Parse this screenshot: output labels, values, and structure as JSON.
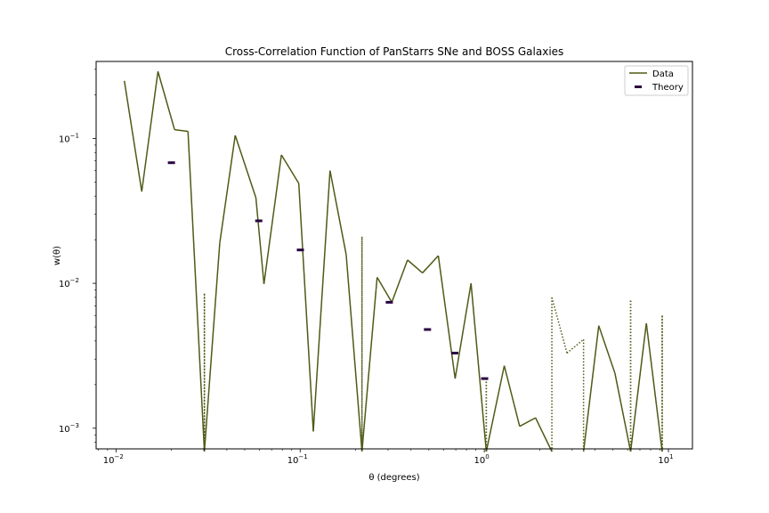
{
  "chart_data": {
    "type": "line",
    "title": "Cross-Correlation Function of PanStarrs SNe and BOSS Galaxies",
    "xlabel": "θ (degrees)",
    "ylabel": "w(θ)",
    "x_scale": "log",
    "y_scale": "log",
    "xlim": [
      0.0078,
      13.5
    ],
    "ylim": [
      0.00072,
      0.34
    ],
    "x_ticks": [
      {
        "value": 0.01,
        "base": "10",
        "exp": "−2"
      },
      {
        "value": 0.1,
        "base": "10",
        "exp": "−1"
      },
      {
        "value": 1,
        "base": "10",
        "exp": "0"
      },
      {
        "value": 10,
        "base": "10",
        "exp": "1"
      }
    ],
    "y_ticks": [
      {
        "value": 0.001,
        "base": "10",
        "exp": "−3"
      },
      {
        "value": 0.01,
        "base": "10",
        "exp": "−2"
      },
      {
        "value": 0.1,
        "base": "10",
        "exp": "−1"
      }
    ],
    "legend_position": "upper-right",
    "colors": {
      "data": "#4d5b16",
      "theory": "#2a0540"
    },
    "series": [
      {
        "name": "Data",
        "style": "solid-positive, dotted-negative",
        "points": [
          [
            0.0111,
            0.25
          ],
          [
            0.0138,
            0.043
          ],
          [
            0.0169,
            0.29
          ],
          [
            0.0208,
            0.115
          ],
          [
            0.0246,
            0.112
          ],
          [
            0.0302,
            -0.0085
          ],
          [
            0.0366,
            0.019
          ],
          [
            0.0444,
            0.105
          ],
          [
            0.0575,
            0.039
          ],
          [
            0.0636,
            0.0099
          ],
          [
            0.0791,
            0.077
          ],
          [
            0.0983,
            0.049
          ],
          [
            0.1179,
            0.00095
          ],
          [
            0.1453,
            0.06
          ],
          [
            0.1778,
            0.0158
          ],
          [
            0.2166,
            -0.021
          ],
          [
            0.2618,
            0.011
          ],
          [
            0.3146,
            0.0074
          ],
          [
            0.3829,
            0.0145
          ],
          [
            0.4616,
            0.0118
          ],
          [
            0.5627,
            0.0155
          ],
          [
            0.6943,
            0.0022
          ],
          [
            0.8472,
            0.01
          ],
          [
            1.0253,
            -0.0022
          ],
          [
            1.2838,
            0.0027
          ],
          [
            1.5558,
            0.00103
          ],
          [
            1.8971,
            0.00118
          ],
          [
            2.3277,
            -0.008
          ],
          [
            2.8114,
            -0.0033
          ],
          [
            3.4592,
            -0.0041
          ],
          [
            4.1837,
            0.0051
          ],
          [
            5.1197,
            0.0024
          ],
          [
            6.2303,
            -0.0076
          ],
          [
            7.5854,
            0.0053
          ],
          [
            9.2462,
            -0.006
          ]
        ]
      },
      {
        "name": "Theory",
        "style": "marker",
        "points": [
          [
            0.02,
            0.068
          ],
          [
            0.0596,
            0.027
          ],
          [
            0.1003,
            0.017
          ],
          [
            0.3049,
            0.0074
          ],
          [
            0.4914,
            0.0048
          ],
          [
            0.6912,
            0.0033
          ],
          [
            1.0044,
            0.0022
          ]
        ]
      }
    ]
  }
}
